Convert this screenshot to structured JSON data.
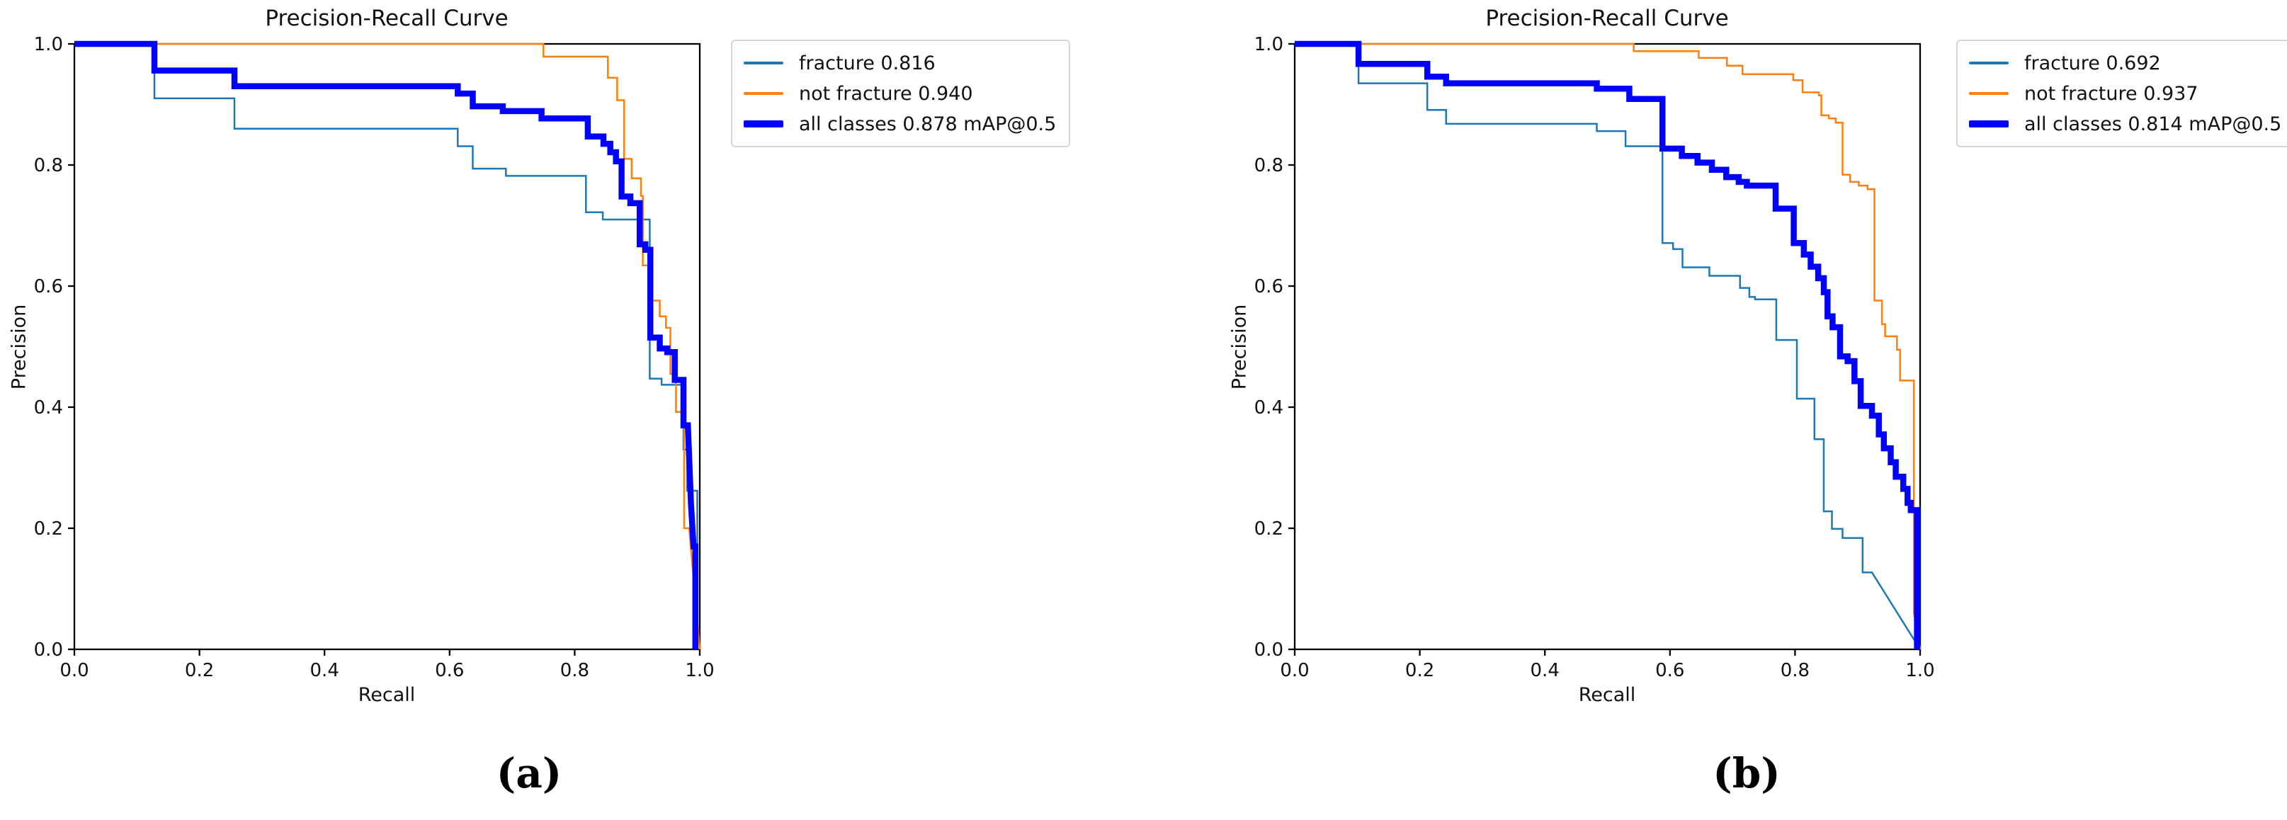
{
  "figure": {
    "background": "#ffffff",
    "spine_color": "#000000",
    "tick_color": "#000000",
    "text_color": "#111111"
  },
  "chart_data": [
    {
      "type": "line",
      "title": "Precision-Recall Curve",
      "xlabel": "Recall",
      "ylabel": "Precision",
      "caption": "(a)",
      "xlim": [
        0.0,
        1.0
      ],
      "ylim": [
        0.0,
        1.0
      ],
      "xticks": [
        "0.0",
        "0.2",
        "0.4",
        "0.6",
        "0.8",
        "1.0"
      ],
      "yticks": [
        "0.0",
        "0.2",
        "0.4",
        "0.6",
        "0.8",
        "1.0"
      ],
      "grid": false,
      "legend_position": "outside-top-right",
      "series": [
        {
          "name": "fracture",
          "legend_label": "fracture 0.816",
          "color": "#1f77b4",
          "width": 2.5,
          "points": [
            [
              0,
              1
            ],
            [
              0.128,
              1
            ],
            [
              0.128,
              0.91
            ],
            [
              0.256,
              0.91
            ],
            [
              0.256,
              0.86
            ],
            [
              0.613,
              0.86
            ],
            [
              0.613,
              0.831
            ],
            [
              0.637,
              0.831
            ],
            [
              0.637,
              0.794
            ],
            [
              0.69,
              0.794
            ],
            [
              0.69,
              0.782
            ],
            [
              0.818,
              0.782
            ],
            [
              0.818,
              0.722
            ],
            [
              0.845,
              0.722
            ],
            [
              0.845,
              0.71
            ],
            [
              0.92,
              0.71
            ],
            [
              0.92,
              0.447
            ],
            [
              0.939,
              0.447
            ],
            [
              0.939,
              0.437
            ],
            [
              0.974,
              0.437
            ],
            [
              0.974,
              0.33
            ],
            [
              0.98,
              0.33
            ],
            [
              0.98,
              0.262
            ],
            [
              0.996,
              0.262
            ],
            [
              0.996,
              0
            ]
          ]
        },
        {
          "name": "not fracture",
          "legend_label": "not fracture 0.940",
          "color": "#ff7f0e",
          "width": 2.5,
          "points": [
            [
              0,
              1
            ],
            [
              0.75,
              1
            ],
            [
              0.75,
              0.979
            ],
            [
              0.853,
              0.979
            ],
            [
              0.853,
              0.944
            ],
            [
              0.868,
              0.944
            ],
            [
              0.868,
              0.907
            ],
            [
              0.879,
              0.907
            ],
            [
              0.879,
              0.81
            ],
            [
              0.891,
              0.81
            ],
            [
              0.891,
              0.778
            ],
            [
              0.906,
              0.778
            ],
            [
              0.906,
              0.749
            ],
            [
              0.909,
              0.749
            ],
            [
              0.909,
              0.634
            ],
            [
              0.918,
              0.634
            ],
            [
              0.918,
              0.576
            ],
            [
              0.936,
              0.576
            ],
            [
              0.936,
              0.55
            ],
            [
              0.946,
              0.55
            ],
            [
              0.946,
              0.531
            ],
            [
              0.953,
              0.531
            ],
            [
              0.953,
              0.455
            ],
            [
              0.962,
              0.455
            ],
            [
              0.962,
              0.392
            ],
            [
              0.975,
              0.392
            ],
            [
              0.975,
              0.2
            ],
            [
              0.983,
              0.2
            ],
            [
              1.0,
              0
            ]
          ]
        },
        {
          "name": "all classes",
          "legend_label": "all classes 0.878 mAP@0.5",
          "color": "#0000ff",
          "width": 8.5,
          "points": [
            [
              0,
              1
            ],
            [
              0.128,
              1
            ],
            [
              0.128,
              0.956
            ],
            [
              0.256,
              0.956
            ],
            [
              0.256,
              0.93
            ],
            [
              0.613,
              0.93
            ],
            [
              0.613,
              0.918
            ],
            [
              0.637,
              0.918
            ],
            [
              0.637,
              0.897
            ],
            [
              0.685,
              0.897
            ],
            [
              0.685,
              0.889
            ],
            [
              0.747,
              0.889
            ],
            [
              0.747,
              0.877
            ],
            [
              0.821,
              0.877
            ],
            [
              0.821,
              0.847
            ],
            [
              0.846,
              0.847
            ],
            [
              0.846,
              0.835
            ],
            [
              0.857,
              0.835
            ],
            [
              0.857,
              0.821
            ],
            [
              0.866,
              0.821
            ],
            [
              0.866,
              0.806
            ],
            [
              0.875,
              0.806
            ],
            [
              0.875,
              0.748
            ],
            [
              0.889,
              0.748
            ],
            [
              0.889,
              0.737
            ],
            [
              0.904,
              0.737
            ],
            [
              0.904,
              0.669
            ],
            [
              0.913,
              0.669
            ],
            [
              0.913,
              0.66
            ],
            [
              0.921,
              0.66
            ],
            [
              0.921,
              0.515
            ],
            [
              0.936,
              0.515
            ],
            [
              0.936,
              0.497
            ],
            [
              0.948,
              0.497
            ],
            [
              0.948,
              0.491
            ],
            [
              0.96,
              0.491
            ],
            [
              0.96,
              0.445
            ],
            [
              0.974,
              0.445
            ],
            [
              0.974,
              0.37
            ],
            [
              0.981,
              0.37
            ],
            [
              0.986,
              0.24
            ],
            [
              0.99,
              0.17
            ],
            [
              0.993,
              0.17
            ],
            [
              0.993,
              0
            ]
          ]
        }
      ]
    },
    {
      "type": "line",
      "title": "Precision-Recall Curve",
      "xlabel": "Recall",
      "ylabel": "Precision",
      "caption": "(b)",
      "xlim": [
        0.0,
        1.0
      ],
      "ylim": [
        0.0,
        1.0
      ],
      "xticks": [
        "0.0",
        "0.2",
        "0.4",
        "0.6",
        "0.8",
        "1.0"
      ],
      "yticks": [
        "0.0",
        "0.2",
        "0.4",
        "0.6",
        "0.8",
        "1.0"
      ],
      "grid": false,
      "legend_position": "outside-top-right",
      "series": [
        {
          "name": "fracture",
          "legend_label": "fracture 0.692",
          "color": "#1f77b4",
          "width": 2.5,
          "points": [
            [
              0,
              1
            ],
            [
              0.102,
              1
            ],
            [
              0.102,
              0.935
            ],
            [
              0.212,
              0.935
            ],
            [
              0.212,
              0.891
            ],
            [
              0.242,
              0.891
            ],
            [
              0.242,
              0.868
            ],
            [
              0.483,
              0.868
            ],
            [
              0.483,
              0.856
            ],
            [
              0.529,
              0.856
            ],
            [
              0.529,
              0.831
            ],
            [
              0.588,
              0.831
            ],
            [
              0.588,
              0.671
            ],
            [
              0.605,
              0.671
            ],
            [
              0.605,
              0.661
            ],
            [
              0.62,
              0.661
            ],
            [
              0.62,
              0.631
            ],
            [
              0.663,
              0.631
            ],
            [
              0.663,
              0.617
            ],
            [
              0.712,
              0.617
            ],
            [
              0.712,
              0.597
            ],
            [
              0.727,
              0.597
            ],
            [
              0.727,
              0.582
            ],
            [
              0.736,
              0.582
            ],
            [
              0.736,
              0.578
            ],
            [
              0.77,
              0.578
            ],
            [
              0.77,
              0.511
            ],
            [
              0.803,
              0.511
            ],
            [
              0.803,
              0.414
            ],
            [
              0.831,
              0.414
            ],
            [
              0.831,
              0.347
            ],
            [
              0.846,
              0.347
            ],
            [
              0.846,
              0.228
            ],
            [
              0.859,
              0.228
            ],
            [
              0.859,
              0.199
            ],
            [
              0.876,
              0.199
            ],
            [
              0.876,
              0.184
            ],
            [
              0.908,
              0.184
            ],
            [
              0.908,
              0.127
            ],
            [
              0.923,
              0.127
            ],
            [
              1.0,
              0
            ]
          ]
        },
        {
          "name": "not fracture",
          "legend_label": "not fracture 0.937",
          "color": "#ff7f0e",
          "width": 2.5,
          "points": [
            [
              0,
              1
            ],
            [
              0.542,
              1
            ],
            [
              0.542,
              0.988
            ],
            [
              0.646,
              0.988
            ],
            [
              0.646,
              0.977
            ],
            [
              0.691,
              0.977
            ],
            [
              0.691,
              0.964
            ],
            [
              0.716,
              0.964
            ],
            [
              0.716,
              0.95
            ],
            [
              0.797,
              0.95
            ],
            [
              0.797,
              0.94
            ],
            [
              0.812,
              0.94
            ],
            [
              0.812,
              0.92
            ],
            [
              0.838,
              0.92
            ],
            [
              0.838,
              0.915
            ],
            [
              0.842,
              0.915
            ],
            [
              0.842,
              0.882
            ],
            [
              0.854,
              0.882
            ],
            [
              0.854,
              0.877
            ],
            [
              0.865,
              0.877
            ],
            [
              0.865,
              0.87
            ],
            [
              0.876,
              0.87
            ],
            [
              0.876,
              0.784
            ],
            [
              0.888,
              0.784
            ],
            [
              0.888,
              0.772
            ],
            [
              0.902,
              0.772
            ],
            [
              0.902,
              0.766
            ],
            [
              0.916,
              0.766
            ],
            [
              0.916,
              0.76
            ],
            [
              0.927,
              0.76
            ],
            [
              0.927,
              0.576
            ],
            [
              0.939,
              0.576
            ],
            [
              0.939,
              0.537
            ],
            [
              0.944,
              0.537
            ],
            [
              0.944,
              0.517
            ],
            [
              0.963,
              0.517
            ],
            [
              0.963,
              0.495
            ],
            [
              0.968,
              0.495
            ],
            [
              0.968,
              0.444
            ],
            [
              0.99,
              0.444
            ],
            [
              0.99,
              0.06
            ],
            [
              1.0,
              0
            ]
          ]
        },
        {
          "name": "all classes",
          "legend_label": "all classes 0.814 mAP@0.5",
          "color": "#0000ff",
          "width": 8.5,
          "points": [
            [
              0,
              1
            ],
            [
              0.102,
              1
            ],
            [
              0.102,
              0.967
            ],
            [
              0.212,
              0.967
            ],
            [
              0.212,
              0.946
            ],
            [
              0.242,
              0.946
            ],
            [
              0.242,
              0.935
            ],
            [
              0.483,
              0.935
            ],
            [
              0.483,
              0.926
            ],
            [
              0.535,
              0.926
            ],
            [
              0.535,
              0.909
            ],
            [
              0.588,
              0.909
            ],
            [
              0.588,
              0.827
            ],
            [
              0.619,
              0.827
            ],
            [
              0.619,
              0.815
            ],
            [
              0.644,
              0.815
            ],
            [
              0.644,
              0.804
            ],
            [
              0.667,
              0.804
            ],
            [
              0.667,
              0.792
            ],
            [
              0.69,
              0.792
            ],
            [
              0.69,
              0.78
            ],
            [
              0.71,
              0.78
            ],
            [
              0.71,
              0.772
            ],
            [
              0.723,
              0.772
            ],
            [
              0.723,
              0.766
            ],
            [
              0.769,
              0.766
            ],
            [
              0.769,
              0.728
            ],
            [
              0.798,
              0.728
            ],
            [
              0.798,
              0.671
            ],
            [
              0.814,
              0.671
            ],
            [
              0.814,
              0.652
            ],
            [
              0.825,
              0.652
            ],
            [
              0.825,
              0.632
            ],
            [
              0.837,
              0.632
            ],
            [
              0.837,
              0.613
            ],
            [
              0.846,
              0.613
            ],
            [
              0.846,
              0.59
            ],
            [
              0.852,
              0.59
            ],
            [
              0.852,
              0.55
            ],
            [
              0.86,
              0.55
            ],
            [
              0.86,
              0.532
            ],
            [
              0.872,
              0.532
            ],
            [
              0.872,
              0.484
            ],
            [
              0.884,
              0.484
            ],
            [
              0.884,
              0.476
            ],
            [
              0.895,
              0.476
            ],
            [
              0.895,
              0.443
            ],
            [
              0.905,
              0.443
            ],
            [
              0.905,
              0.402
            ],
            [
              0.923,
              0.402
            ],
            [
              0.923,
              0.386
            ],
            [
              0.934,
              0.386
            ],
            [
              0.934,
              0.355
            ],
            [
              0.942,
              0.355
            ],
            [
              0.942,
              0.332
            ],
            [
              0.953,
              0.332
            ],
            [
              0.953,
              0.309
            ],
            [
              0.961,
              0.309
            ],
            [
              0.961,
              0.285
            ],
            [
              0.973,
              0.285
            ],
            [
              0.973,
              0.265
            ],
            [
              0.98,
              0.265
            ],
            [
              0.98,
              0.242
            ],
            [
              0.985,
              0.242
            ],
            [
              0.985,
              0.23
            ],
            [
              0.995,
              0.23
            ],
            [
              0.995,
              0
            ]
          ]
        }
      ]
    }
  ]
}
